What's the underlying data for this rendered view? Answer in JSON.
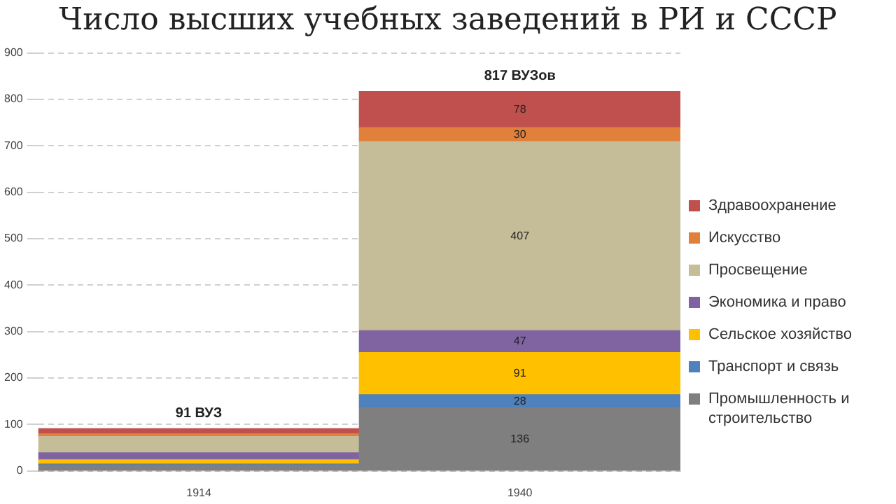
{
  "chart_data": {
    "type": "bar",
    "title": "Число высших учебных заведений в РИ и СССР",
    "categories": [
      "1914",
      "1940"
    ],
    "stacked": true,
    "series": [
      {
        "name": "Промышленность и строительство",
        "color": "#7f7f7f",
        "values": [
          13,
          136
        ],
        "value_labels": [
          null,
          "136"
        ]
      },
      {
        "name": "Транспорт и связь",
        "color": "#4f81bd",
        "values": [
          2,
          28
        ],
        "value_labels": [
          null,
          "28"
        ]
      },
      {
        "name": "Сельское хозяйство",
        "color": "#ffc000",
        "values": [
          9,
          91
        ],
        "value_labels": [
          null,
          "91"
        ]
      },
      {
        "name": "Экономика и право",
        "color": "#8064a2",
        "values": [
          15,
          47
        ],
        "value_labels": [
          null,
          "47"
        ]
      },
      {
        "name": "Просвещение",
        "color": "#c4bd97",
        "values": [
          35,
          407
        ],
        "value_labels": [
          null,
          "407"
        ]
      },
      {
        "name": "Искусство",
        "color": "#e0803a",
        "values": [
          6,
          30
        ],
        "value_labels": [
          null,
          "30"
        ]
      },
      {
        "name": "Здравоохранение",
        "color": "#c0504d",
        "values": [
          11,
          78
        ],
        "value_labels": [
          null,
          "78"
        ]
      }
    ],
    "totals": [
      "91 ВУЗ",
      "817 ВУЗов"
    ],
    "ylim": [
      0,
      900
    ],
    "yticks": [
      0,
      100,
      200,
      300,
      400,
      500,
      600,
      700,
      800,
      900
    ],
    "grid": "y",
    "legend": "right"
  }
}
